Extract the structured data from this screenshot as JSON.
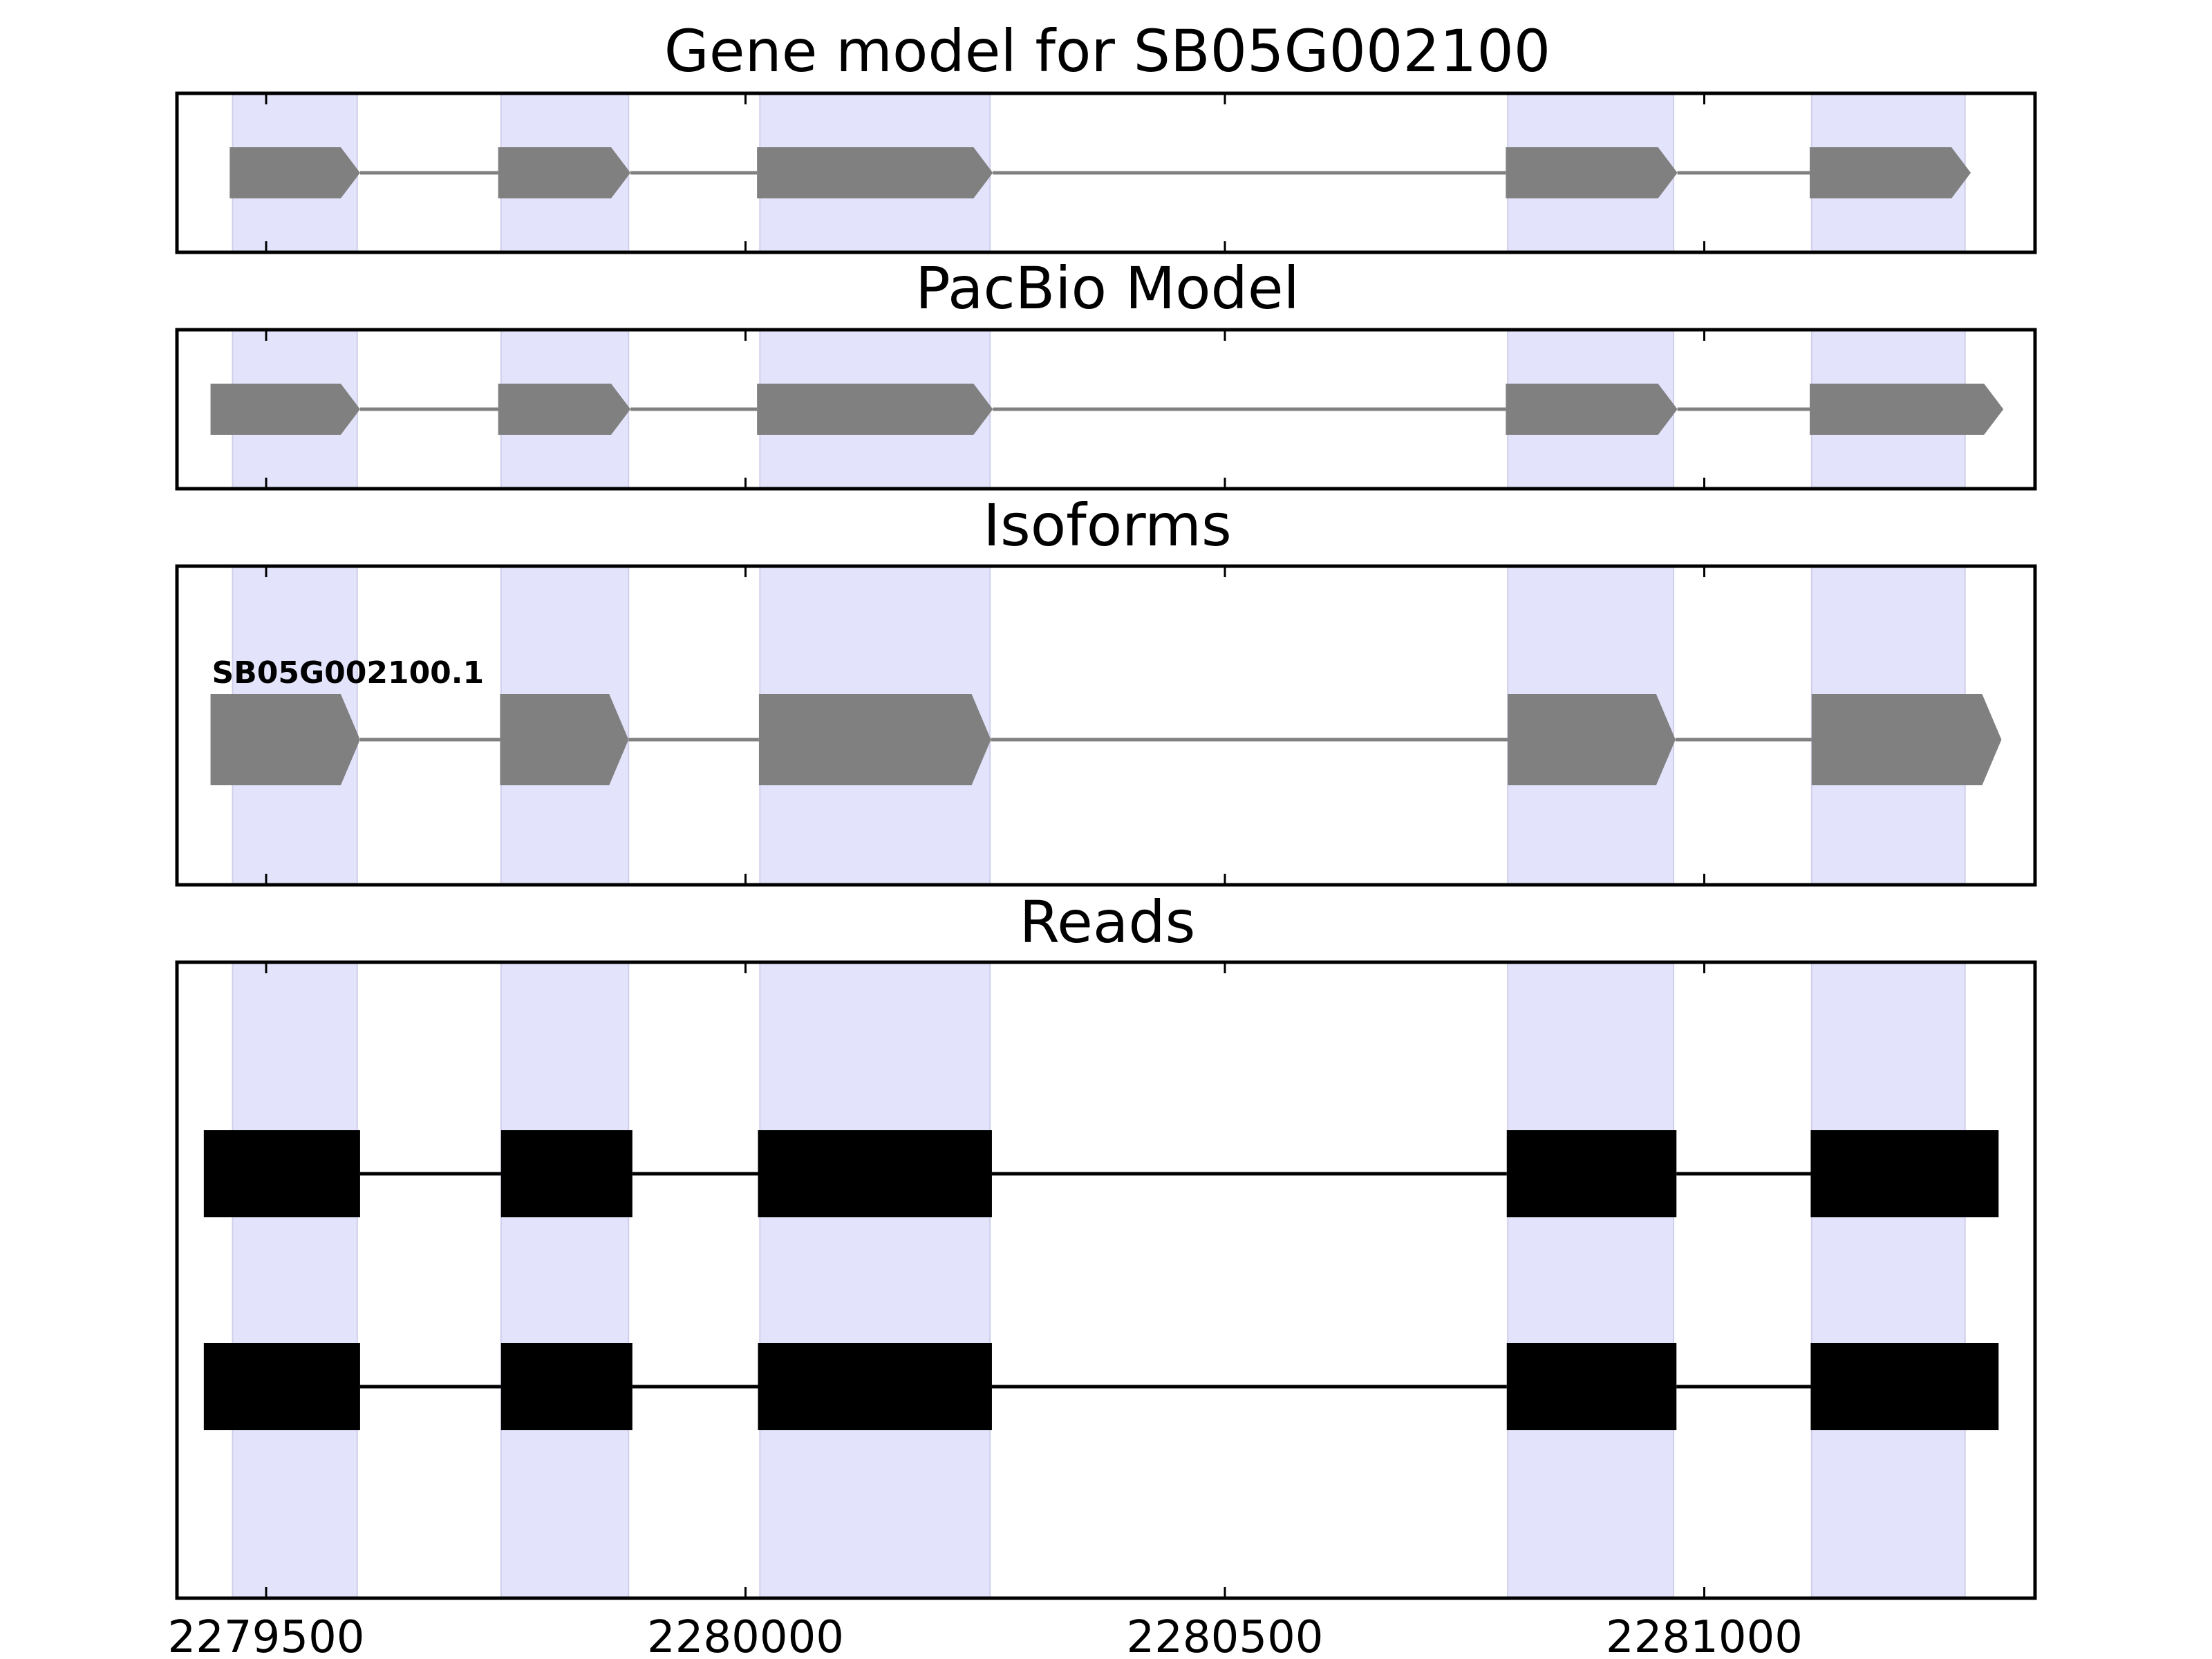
{
  "colors": {
    "background": "#ffffff",
    "exon_band": "#e3e3fb",
    "exon_band_edge": "#cfcfec",
    "model_feature": "#808080",
    "read_feature": "#000000",
    "frame": "#000000"
  },
  "chart_data": {
    "type": "gene_model_tracks",
    "xlim": [
      2279407,
      2281345
    ],
    "xticks": [
      2279500,
      2280000,
      2280500,
      2281000
    ],
    "xtick_labels": [
      "2279500",
      "2280000",
      "2280500",
      "2281000"
    ],
    "exon_bands": [
      [
        2279465,
        2279595
      ],
      [
        2279745,
        2279878
      ],
      [
        2280015,
        2280255
      ],
      [
        2280795,
        2280968
      ],
      [
        2281112,
        2281272
      ]
    ],
    "panels": [
      {
        "title": "Gene model for SB05G002100",
        "kind": "model",
        "tracks": [
          {
            "label": "",
            "exons": [
              [
                2279462,
                2279598
              ],
              [
                2279742,
                2279880
              ],
              [
                2280012,
                2280258
              ],
              [
                2280793,
                2280972
              ],
              [
                2281110,
                2281278
              ]
            ]
          }
        ]
      },
      {
        "title": "PacBio Model",
        "kind": "model",
        "tracks": [
          {
            "label": "",
            "exons": [
              [
                2279442,
                2279598
              ],
              [
                2279742,
                2279880
              ],
              [
                2280012,
                2280258
              ],
              [
                2280793,
                2280972
              ],
              [
                2281110,
                2281312
              ]
            ]
          }
        ]
      },
      {
        "title": "Isoforms",
        "kind": "isoform",
        "tracks": [
          {
            "label": "SB05G002100.1",
            "exons": [
              [
                2279442,
                2279598
              ],
              [
                2279744,
                2279878
              ],
              [
                2280014,
                2280256
              ],
              [
                2280795,
                2280970
              ],
              [
                2281112,
                2281310
              ]
            ]
          }
        ]
      },
      {
        "title": "Reads",
        "kind": "reads",
        "tracks": [
          {
            "label": "",
            "exons": [
              [
                2279435,
                2279598
              ],
              [
                2279745,
                2279882
              ],
              [
                2280013,
                2280257
              ],
              [
                2280794,
                2280971
              ],
              [
                2281111,
                2281307
              ]
            ]
          },
          {
            "label": "",
            "exons": [
              [
                2279435,
                2279598
              ],
              [
                2279745,
                2279882
              ],
              [
                2280013,
                2280257
              ],
              [
                2280794,
                2280971
              ],
              [
                2281111,
                2281307
              ]
            ]
          }
        ]
      }
    ]
  }
}
